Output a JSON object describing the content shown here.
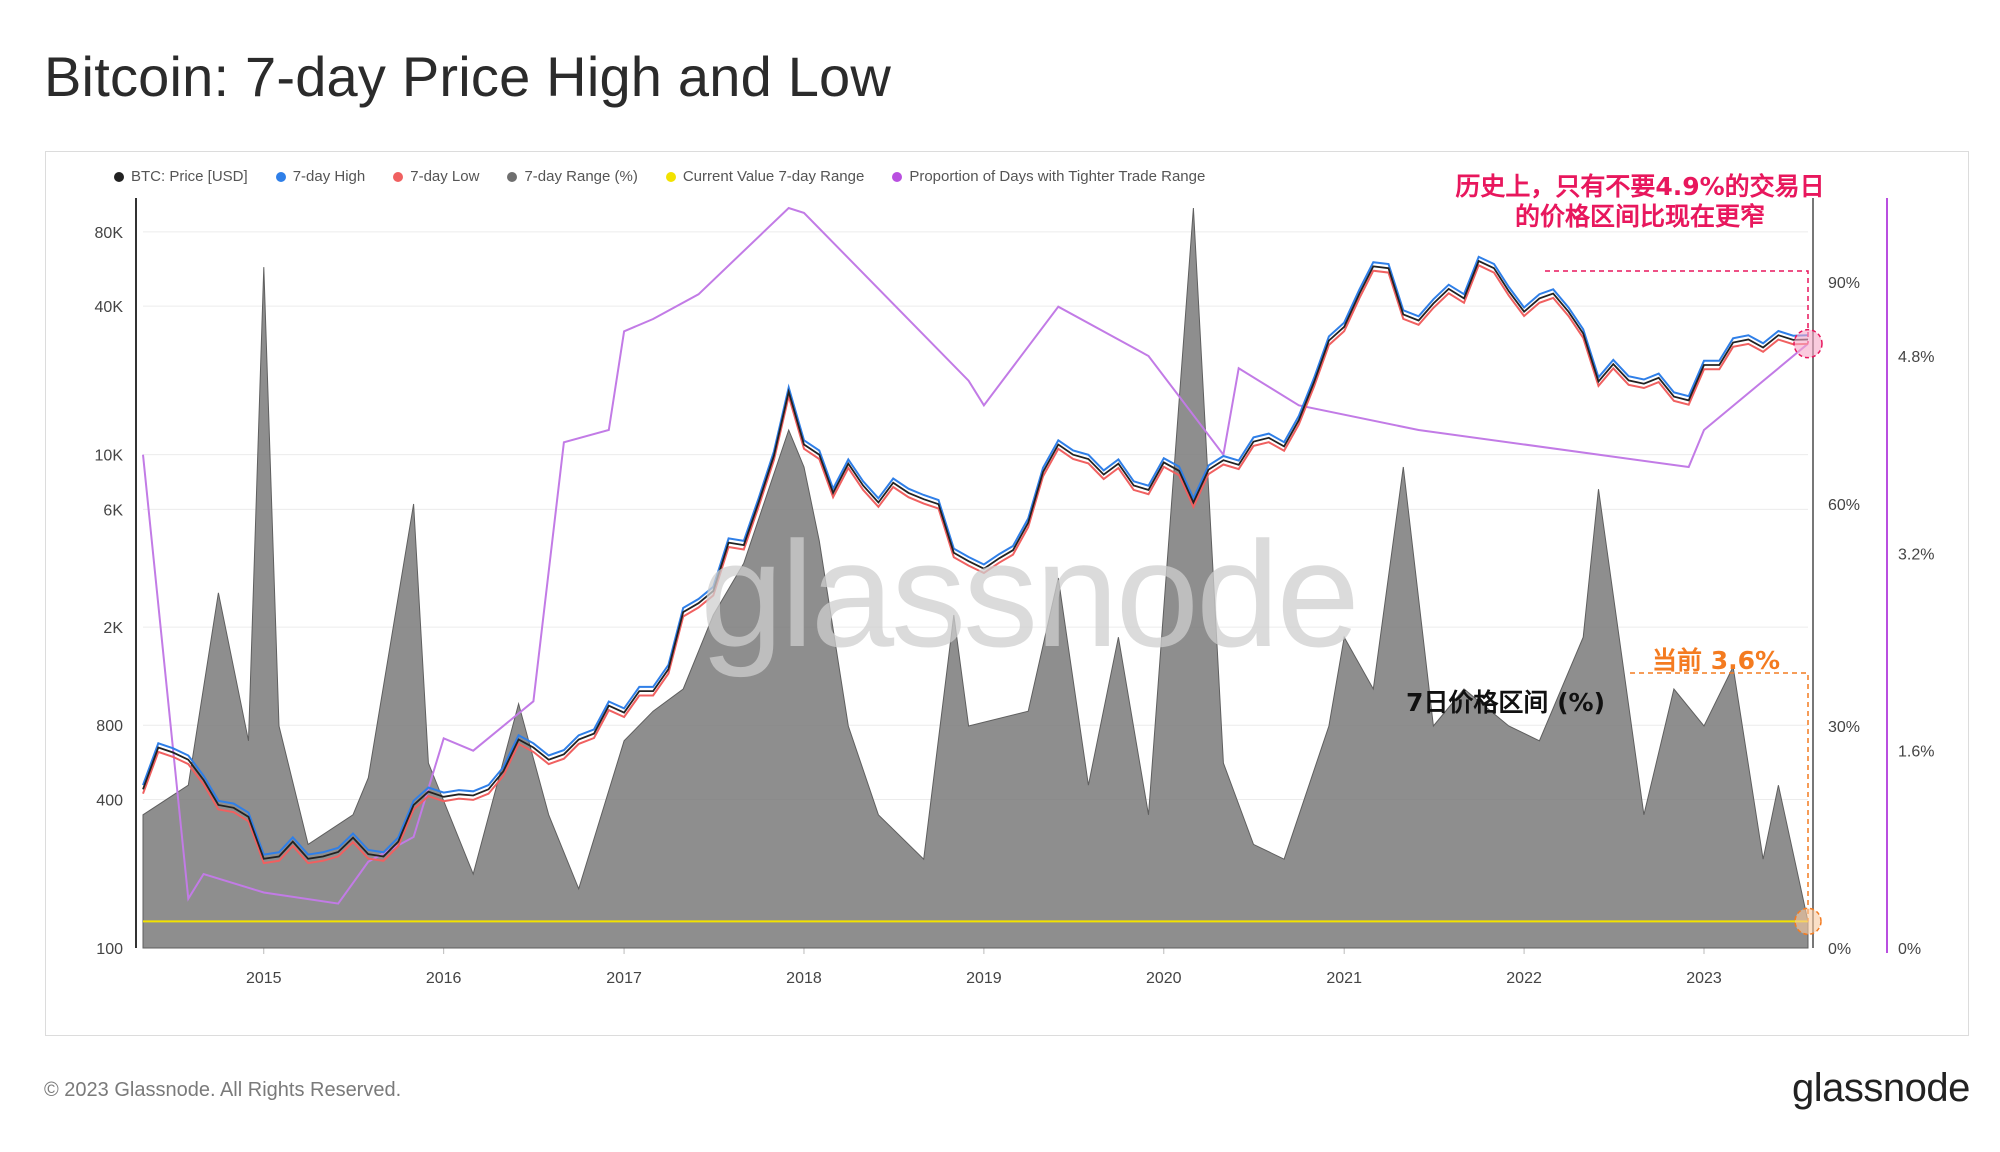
{
  "header": {
    "title": "Bitcoin: 7-day Price High and Low"
  },
  "footer": {
    "copyright": "© 2023 Glassnode. All Rights Reserved.",
    "brand": "glassnode"
  },
  "watermark": "glassnode",
  "legend": [
    {
      "label": "BTC: Price [USD]",
      "color": "#222222"
    },
    {
      "label": "7-day High",
      "color": "#2f7fe8"
    },
    {
      "label": "7-day Low",
      "color": "#f06060"
    },
    {
      "label": "7-day Range (%)",
      "color": "#6f6f6f"
    },
    {
      "label": "Current Value 7-day Range",
      "color": "#f2e200"
    },
    {
      "label": "Proportion of Days with Tighter Trade Range",
      "color": "#b94fe0"
    }
  ],
  "annotations": {
    "historical": "历史上，只有不要4.9%的交易日\n的价格区间比现在更窄",
    "current": "当前 3.6%",
    "range_label": "7日价格区间 (%)"
  },
  "chart_data": {
    "type": "line",
    "title": "Bitcoin: 7-day Price High and Low",
    "x_ticks": [
      "2015",
      "2016",
      "2017",
      "2018",
      "2019",
      "2020",
      "2021",
      "2022",
      "2023"
    ],
    "x_range": [
      "2014-05-01",
      "2023-07-31"
    ],
    "y_left": {
      "scale": "log",
      "ticks": [
        "80K",
        "40K",
        "10K",
        "6K",
        "2K",
        "800",
        "400",
        "100"
      ],
      "range": [
        100,
        100000
      ]
    },
    "y_right_1": {
      "ticks": [
        "90%",
        "60%",
        "30%",
        "0%"
      ],
      "range": [
        0,
        100
      ]
    },
    "y_right_2": {
      "ticks": [
        "4.8%",
        "3.2%",
        "1.6%",
        "0%"
      ],
      "range": [
        0,
        6
      ]
    },
    "series": [
      {
        "name": "BTC: Price [USD]",
        "axis": "left",
        "points": [
          [
            "2014-05-01",
            440
          ],
          [
            "2014-06-01",
            650
          ],
          [
            "2014-07-01",
            620
          ],
          [
            "2014-08-01",
            580
          ],
          [
            "2014-09-01",
            480
          ],
          [
            "2014-10-01",
            380
          ],
          [
            "2014-11-01",
            370
          ],
          [
            "2014-12-01",
            340
          ],
          [
            "2015-01-01",
            230
          ],
          [
            "2015-02-01",
            235
          ],
          [
            "2015-03-01",
            270
          ],
          [
            "2015-04-01",
            230
          ],
          [
            "2015-05-01",
            235
          ],
          [
            "2015-06-01",
            245
          ],
          [
            "2015-07-01",
            280
          ],
          [
            "2015-08-01",
            240
          ],
          [
            "2015-09-01",
            235
          ],
          [
            "2015-10-01",
            270
          ],
          [
            "2015-11-01",
            380
          ],
          [
            "2015-12-01",
            430
          ],
          [
            "2016-01-01",
            410
          ],
          [
            "2016-02-01",
            420
          ],
          [
            "2016-03-01",
            415
          ],
          [
            "2016-04-01",
            440
          ],
          [
            "2016-05-01",
            520
          ],
          [
            "2016-06-01",
            700
          ],
          [
            "2016-07-01",
            650
          ],
          [
            "2016-08-01",
            580
          ],
          [
            "2016-09-01",
            610
          ],
          [
            "2016-10-01",
            700
          ],
          [
            "2016-11-01",
            740
          ],
          [
            "2016-12-01",
            960
          ],
          [
            "2017-01-01",
            900
          ],
          [
            "2017-02-01",
            1100
          ],
          [
            "2017-03-01",
            1100
          ],
          [
            "2017-04-01",
            1350
          ],
          [
            "2017-05-01",
            2300
          ],
          [
            "2017-06-01",
            2500
          ],
          [
            "2017-07-01",
            2800
          ],
          [
            "2017-08-01",
            4400
          ],
          [
            "2017-09-01",
            4300
          ],
          [
            "2017-10-01",
            6400
          ],
          [
            "2017-11-01",
            9900
          ],
          [
            "2017-12-01",
            18000
          ],
          [
            "2018-01-01",
            11000
          ],
          [
            "2018-02-01",
            10000
          ],
          [
            "2018-03-01",
            7000
          ],
          [
            "2018-04-01",
            9200
          ],
          [
            "2018-05-01",
            7500
          ],
          [
            "2018-06-01",
            6400
          ],
          [
            "2018-07-01",
            7700
          ],
          [
            "2018-08-01",
            7000
          ],
          [
            "2018-09-01",
            6600
          ],
          [
            "2018-10-01",
            6300
          ],
          [
            "2018-11-01",
            4000
          ],
          [
            "2018-12-01",
            3700
          ],
          [
            "2019-01-01",
            3450
          ],
          [
            "2019-02-01",
            3800
          ],
          [
            "2019-03-01",
            4100
          ],
          [
            "2019-04-01",
            5300
          ],
          [
            "2019-05-01",
            8500
          ],
          [
            "2019-06-01",
            11000
          ],
          [
            "2019-07-01",
            10000
          ],
          [
            "2019-08-01",
            9600
          ],
          [
            "2019-09-01",
            8300
          ],
          [
            "2019-10-01",
            9200
          ],
          [
            "2019-11-01",
            7500
          ],
          [
            "2019-12-01",
            7200
          ],
          [
            "2020-01-01",
            9300
          ],
          [
            "2020-02-01",
            8600
          ],
          [
            "2020-03-01",
            6400
          ],
          [
            "2020-04-01",
            8700
          ],
          [
            "2020-05-01",
            9500
          ],
          [
            "2020-06-01",
            9100
          ],
          [
            "2020-07-01",
            11300
          ],
          [
            "2020-08-01",
            11700
          ],
          [
            "2020-09-01",
            10800
          ],
          [
            "2020-10-01",
            13800
          ],
          [
            "2020-11-01",
            19700
          ],
          [
            "2020-12-01",
            29000
          ],
          [
            "2021-01-01",
            33000
          ],
          [
            "2021-02-01",
            45000
          ],
          [
            "2021-03-01",
            58000
          ],
          [
            "2021-04-01",
            57000
          ],
          [
            "2021-05-01",
            37000
          ],
          [
            "2021-06-01",
            35000
          ],
          [
            "2021-07-01",
            41000
          ],
          [
            "2021-08-01",
            47000
          ],
          [
            "2021-09-01",
            43000
          ],
          [
            "2021-10-01",
            61000
          ],
          [
            "2021-11-01",
            57000
          ],
          [
            "2021-12-01",
            46000
          ],
          [
            "2022-01-01",
            38000
          ],
          [
            "2022-02-01",
            43000
          ],
          [
            "2022-03-01",
            45000
          ],
          [
            "2022-04-01",
            38000
          ],
          [
            "2022-05-01",
            31000
          ],
          [
            "2022-06-01",
            19800
          ],
          [
            "2022-07-01",
            23300
          ],
          [
            "2022-08-01",
            20000
          ],
          [
            "2022-09-01",
            19400
          ],
          [
            "2022-10-01",
            20500
          ],
          [
            "2022-11-01",
            17200
          ],
          [
            "2022-12-01",
            16600
          ],
          [
            "2023-01-01",
            23100
          ],
          [
            "2023-02-01",
            23100
          ],
          [
            "2023-03-01",
            28500
          ],
          [
            "2023-04-01",
            29300
          ],
          [
            "2023-05-01",
            27200
          ],
          [
            "2023-06-01",
            30500
          ],
          [
            "2023-07-01",
            29200
          ],
          [
            "2023-07-31",
            29300
          ]
        ]
      },
      {
        "name": "7-day High",
        "axis": "left",
        "offset_pct": 4
      },
      {
        "name": "7-day Low",
        "axis": "left",
        "offset_pct": -4
      },
      {
        "name": "7-day Range (%)",
        "axis": "right_1",
        "type": "area",
        "points": [
          [
            "2014-05-01",
            18
          ],
          [
            "2014-08-01",
            22
          ],
          [
            "2014-10-01",
            48
          ],
          [
            "2014-12-01",
            28
          ],
          [
            "2015-01-01",
            92
          ],
          [
            "2015-02-01",
            30
          ],
          [
            "2015-04-01",
            14
          ],
          [
            "2015-07-01",
            18
          ],
          [
            "2015-08-01",
            23
          ],
          [
            "2015-11-01",
            60
          ],
          [
            "2015-12-01",
            25
          ],
          [
            "2016-03-01",
            10
          ],
          [
            "2016-06-01",
            33
          ],
          [
            "2016-08-01",
            18
          ],
          [
            "2016-10-01",
            8
          ],
          [
            "2017-01-01",
            28
          ],
          [
            "2017-03-01",
            32
          ],
          [
            "2017-05-01",
            35
          ],
          [
            "2017-07-01",
            45
          ],
          [
            "2017-09-01",
            52
          ],
          [
            "2017-12-01",
            70
          ],
          [
            "2018-01-01",
            65
          ],
          [
            "2018-02-01",
            55
          ],
          [
            "2018-04-01",
            30
          ],
          [
            "2018-06-01",
            18
          ],
          [
            "2018-09-01",
            12
          ],
          [
            "2018-11-01",
            45
          ],
          [
            "2018-12-01",
            30
          ],
          [
            "2019-04-01",
            32
          ],
          [
            "2019-06-01",
            50
          ],
          [
            "2019-08-01",
            22
          ],
          [
            "2019-10-01",
            42
          ],
          [
            "2019-12-01",
            18
          ],
          [
            "2020-03-01",
            100
          ],
          [
            "2020-05-01",
            25
          ],
          [
            "2020-07-01",
            14
          ],
          [
            "2020-09-01",
            12
          ],
          [
            "2020-12-01",
            30
          ],
          [
            "2021-01-01",
            42
          ],
          [
            "2021-03-01",
            35
          ],
          [
            "2021-05-01",
            65
          ],
          [
            "2021-07-01",
            30
          ],
          [
            "2021-09-01",
            35
          ],
          [
            "2021-12-01",
            30
          ],
          [
            "2022-02-01",
            28
          ],
          [
            "2022-05-01",
            42
          ],
          [
            "2022-06-01",
            62
          ],
          [
            "2022-09-01",
            18
          ],
          [
            "2022-11-01",
            35
          ],
          [
            "2023-01-01",
            30
          ],
          [
            "2023-03-01",
            38
          ],
          [
            "2023-05-01",
            12
          ],
          [
            "2023-06-01",
            22
          ],
          [
            "2023-07-31",
            3.6
          ]
        ]
      },
      {
        "name": "Current Value 7-day Range",
        "axis": "right_1",
        "value": 3.6
      },
      {
        "name": "Proportion of Days with Tighter Trade Range",
        "axis": "right_2",
        "points": [
          [
            "2014-05-01",
            4.0
          ],
          [
            "2014-08-01",
            0.4
          ],
          [
            "2014-09-01",
            0.6
          ],
          [
            "2015-01-01",
            0.45
          ],
          [
            "2015-06-01",
            0.36
          ],
          [
            "2015-08-01",
            0.7
          ],
          [
            "2015-11-01",
            0.9
          ],
          [
            "2016-01-01",
            1.7
          ],
          [
            "2016-03-01",
            1.6
          ],
          [
            "2016-07-01",
            2.0
          ],
          [
            "2016-09-01",
            4.1
          ],
          [
            "2016-12-01",
            4.2
          ],
          [
            "2017-01-01",
            5.0
          ],
          [
            "2017-03-01",
            5.1
          ],
          [
            "2017-06-01",
            5.3
          ],
          [
            "2017-12-01",
            6.0
          ],
          [
            "2018-01-01",
            5.96
          ],
          [
            "2018-12-01",
            4.6
          ],
          [
            "2019-01-01",
            4.4
          ],
          [
            "2019-06-01",
            5.2
          ],
          [
            "2019-12-01",
            4.8
          ],
          [
            "2020-05-01",
            4.0
          ],
          [
            "2020-06-01",
            4.7
          ],
          [
            "2020-10-01",
            4.4
          ],
          [
            "2021-06-01",
            4.2
          ],
          [
            "2022-12-01",
            3.9
          ],
          [
            "2023-01-01",
            4.2
          ],
          [
            "2023-07-31",
            4.9
          ]
        ]
      }
    ]
  }
}
